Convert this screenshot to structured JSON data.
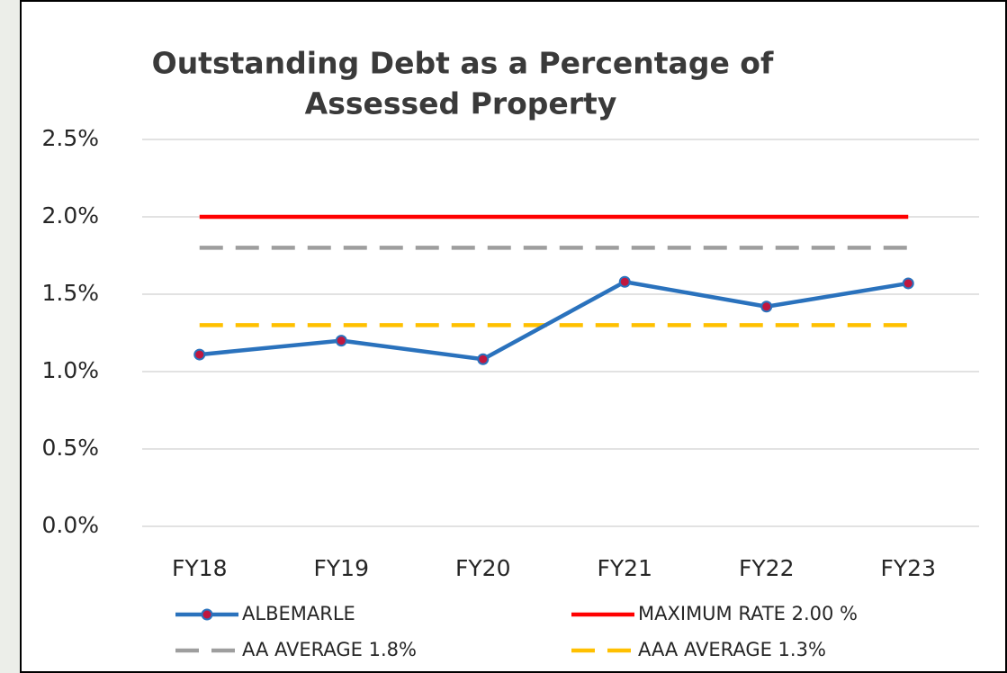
{
  "chart_data": {
    "type": "line",
    "title": [
      "Outstanding Debt as a Percentage of",
      "Assessed Property"
    ],
    "categories": [
      "FY18",
      "FY19",
      "FY20",
      "FY21",
      "FY22",
      "FY23"
    ],
    "series": [
      {
        "name": "ALBEMARLE",
        "color": "#2a72bd",
        "marker_color": "#c0173f",
        "marker": true,
        "dashed": false,
        "values": [
          1.11,
          1.2,
          1.08,
          1.58,
          1.42,
          1.57
        ]
      },
      {
        "name": "MAXIMUM RATE 2.00 %",
        "color": "#ff0000",
        "marker": false,
        "dashed": false,
        "values": [
          2.0,
          2.0,
          2.0,
          2.0,
          2.0,
          2.0
        ]
      },
      {
        "name": "AA AVERAGE 1.8%",
        "color": "#9e9e9e",
        "marker": false,
        "dashed": true,
        "values": [
          1.8,
          1.8,
          1.8,
          1.8,
          1.8,
          1.8
        ]
      },
      {
        "name": "AAA AVERAGE 1.3%",
        "color": "#ffc000",
        "marker": false,
        "dashed": true,
        "values": [
          1.3,
          1.3,
          1.3,
          1.3,
          1.3,
          1.3
        ]
      }
    ],
    "ylim": [
      0,
      2.5
    ],
    "yticks": [
      {
        "value": 0,
        "label": "0.0%"
      },
      {
        "value": 0.5,
        "label": "0.5%"
      },
      {
        "value": 1,
        "label": "1.0%"
      },
      {
        "value": 1.5,
        "label": "1.5%"
      },
      {
        "value": 2,
        "label": "2.0%"
      },
      {
        "value": 2.5,
        "label": "2.5%"
      }
    ],
    "grid": true,
    "legend": "bottom"
  }
}
